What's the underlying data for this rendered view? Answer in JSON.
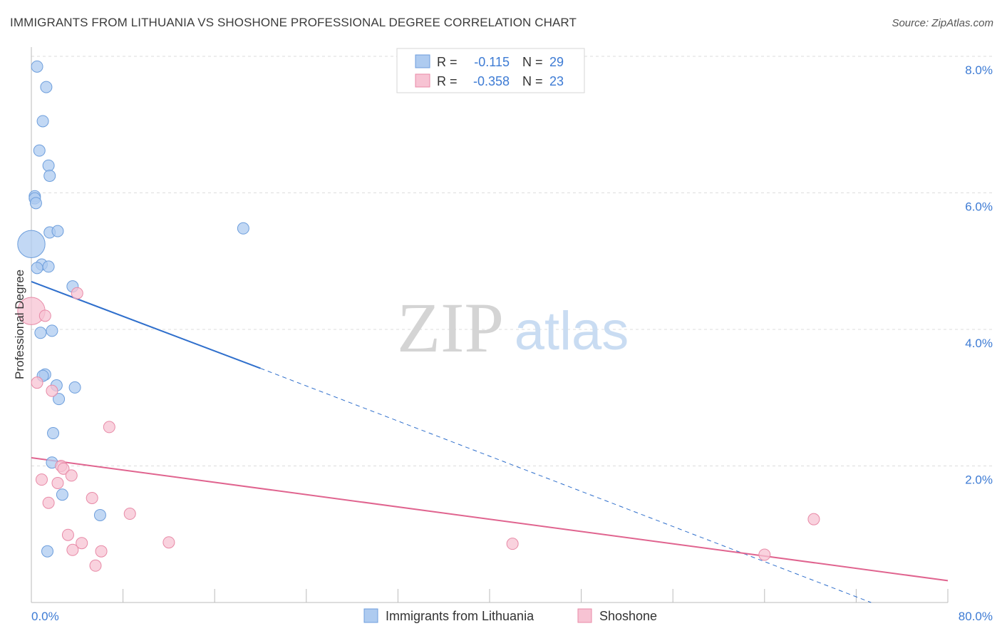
{
  "title": "IMMIGRANTS FROM LITHUANIA VS SHOSHONE PROFESSIONAL DEGREE CORRELATION CHART",
  "source": "Source: ZipAtlas.com",
  "watermark": {
    "zip": "ZIP",
    "atlas": "atlas"
  },
  "colors": {
    "blue_fill": "#aecbf0",
    "blue_stroke": "#6d9edc",
    "blue_line": "#2f6fcc",
    "pink_fill": "#f7c3d3",
    "pink_stroke": "#e88aa7",
    "pink_line": "#e0648f",
    "axis_label": "#3d7bd4",
    "grid": "#dcdcdc"
  },
  "legend_top": {
    "rows": [
      {
        "r_label": "R =",
        "r_value": "-0.115",
        "n_label": "N =",
        "n_value": "29"
      },
      {
        "r_label": "R =",
        "r_value": "-0.358",
        "n_label": "N =",
        "n_value": "23"
      }
    ]
  },
  "legend_bottom": {
    "series1": "Immigrants from Lithuania",
    "series2": "Shoshone"
  },
  "chart_data": {
    "type": "scatter",
    "title": "IMMIGRANTS FROM LITHUANIA VS SHOSHONE PROFESSIONAL DEGREE CORRELATION CHART",
    "xlabel": "",
    "ylabel": "Professional Degree",
    "xlim": [
      0,
      80
    ],
    "ylim": [
      0,
      8.0
    ],
    "x_tick_labels": [
      "0.0%",
      "80.0%"
    ],
    "y_ticks": [
      2,
      4,
      6,
      8
    ],
    "y_tick_labels": [
      "2.0%",
      "4.0%",
      "6.0%",
      "8.0%"
    ],
    "grid": true,
    "legend_position": "top-center",
    "series": [
      {
        "name": "Immigrants from Lithuania",
        "r": -0.115,
        "n": 29,
        "points": [
          [
            0.5,
            7.85,
            1
          ],
          [
            1.3,
            7.55,
            1
          ],
          [
            1.0,
            7.05,
            1
          ],
          [
            0.7,
            6.62,
            1
          ],
          [
            1.5,
            6.4,
            1
          ],
          [
            1.6,
            6.25,
            1
          ],
          [
            0.3,
            5.95,
            1
          ],
          [
            0.3,
            5.92,
            1
          ],
          [
            0.4,
            5.85,
            1
          ],
          [
            0.0,
            5.25,
            2.4
          ],
          [
            1.6,
            5.42,
            1
          ],
          [
            2.3,
            5.44,
            1
          ],
          [
            18.5,
            5.48,
            1
          ],
          [
            0.9,
            4.95,
            1
          ],
          [
            0.5,
            4.9,
            1
          ],
          [
            1.5,
            4.92,
            1
          ],
          [
            3.6,
            4.63,
            1
          ],
          [
            0.8,
            3.95,
            1
          ],
          [
            1.8,
            3.98,
            1
          ],
          [
            1.2,
            3.34,
            1
          ],
          [
            1.0,
            3.32,
            1
          ],
          [
            2.2,
            3.18,
            1
          ],
          [
            3.8,
            3.15,
            1
          ],
          [
            2.4,
            2.98,
            1
          ],
          [
            1.9,
            2.48,
            1
          ],
          [
            1.8,
            2.05,
            1
          ],
          [
            2.7,
            1.58,
            1
          ],
          [
            6.0,
            1.28,
            1
          ],
          [
            1.4,
            0.75,
            1
          ]
        ],
        "trend": {
          "x_start": 0,
          "y_start": 4.7,
          "x_solid_end": 20,
          "y_solid_end": 3.43,
          "x_end": 73.3,
          "y_end": 0.0
        }
      },
      {
        "name": "Shoshone",
        "r": -0.358,
        "n": 23,
        "points": [
          [
            0.0,
            4.27,
            2.4
          ],
          [
            4.0,
            4.53,
            1
          ],
          [
            1.2,
            4.2,
            1
          ],
          [
            0.5,
            3.22,
            1
          ],
          [
            1.8,
            3.1,
            1
          ],
          [
            6.8,
            2.57,
            1
          ],
          [
            2.6,
            2.0,
            1
          ],
          [
            2.8,
            1.96,
            1
          ],
          [
            3.5,
            1.86,
            1
          ],
          [
            0.9,
            1.8,
            1
          ],
          [
            2.3,
            1.75,
            1
          ],
          [
            5.3,
            1.53,
            1
          ],
          [
            1.5,
            1.46,
            1
          ],
          [
            8.6,
            1.3,
            1
          ],
          [
            3.2,
            0.99,
            1
          ],
          [
            4.4,
            0.87,
            1
          ],
          [
            12.0,
            0.88,
            1
          ],
          [
            42.0,
            0.86,
            1
          ],
          [
            3.6,
            0.77,
            1
          ],
          [
            6.1,
            0.75,
            1
          ],
          [
            5.6,
            0.54,
            1
          ],
          [
            68.3,
            1.22,
            1
          ],
          [
            64.0,
            0.7,
            1
          ]
        ],
        "trend": {
          "x_start": 0,
          "y_start": 2.12,
          "x_end": 80,
          "y_end": 0.32
        }
      }
    ]
  }
}
